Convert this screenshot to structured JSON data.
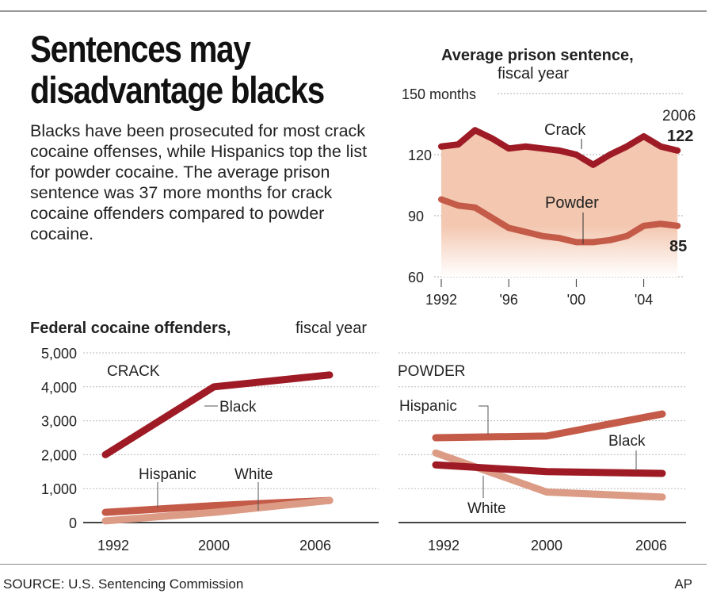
{
  "headline": "Sentences may disadvantage blacks",
  "description": "Blacks have been prosecuted for most crack cocaine offenses, while Hispanics top the list for powder cocaine. The average prison sentence was 37 more months for crack cocaine offenders compared to powder cocaine.",
  "source": "SOURCE: U.S. Sentencing Commission",
  "credit": "AP",
  "colors": {
    "crack_black": "#9e1b25",
    "powder_hispanic": "#c45a48",
    "white": "#dc9b85",
    "area_fill": "#f3c7b0"
  },
  "chart_data": [
    {
      "type": "area",
      "title": "Average prison sentence,",
      "subtitle": "fiscal year",
      "ylim": [
        60,
        150
      ],
      "yticks": [
        60,
        90,
        120,
        150
      ],
      "ytick_labels": [
        "60",
        "90",
        "120",
        "150 months"
      ],
      "xticks": [
        1992,
        1996,
        2000,
        2004
      ],
      "xtick_labels": [
        "1992",
        "'96",
        "'00",
        "'04"
      ],
      "grid": true,
      "x": [
        1992,
        1993,
        1994,
        1995,
        1996,
        1997,
        1998,
        1999,
        2000,
        2001,
        2002,
        2003,
        2004,
        2005,
        2006
      ],
      "series": [
        {
          "name": "Crack",
          "values": [
            124,
            125,
            132,
            128,
            123,
            124,
            123,
            122,
            120,
            115,
            120,
            124,
            129,
            124,
            122
          ],
          "end_label": "122"
        },
        {
          "name": "Powder",
          "values": [
            98,
            95,
            94,
            89,
            84,
            82,
            80,
            79,
            77,
            77,
            78,
            80,
            85,
            86,
            85
          ],
          "end_label": "85"
        }
      ],
      "end_year_label": "2006"
    },
    {
      "type": "line",
      "title": "Federal cocaine offenders,",
      "subtitle": "fiscal year",
      "panel_label": "CRACK",
      "ylim": [
        0,
        5000
      ],
      "ytick_labels": [
        "0",
        "1,000",
        "2,000",
        "3,000",
        "4,000",
        "5,000"
      ],
      "yticks": [
        0,
        1000,
        2000,
        3000,
        4000,
        5000
      ],
      "categories": [
        "1992",
        "2000",
        "2006"
      ],
      "grid": true,
      "series": [
        {
          "name": "Black",
          "values": [
            2000,
            4000,
            4350
          ]
        },
        {
          "name": "Hispanic",
          "values": [
            300,
            500,
            650
          ]
        },
        {
          "name": "White",
          "values": [
            50,
            300,
            650
          ]
        }
      ]
    },
    {
      "type": "line",
      "panel_label": "POWDER",
      "ylim": [
        0,
        5000
      ],
      "yticks": [
        0,
        1000,
        2000,
        3000,
        4000,
        5000
      ],
      "categories": [
        "1992",
        "2000",
        "2006"
      ],
      "grid": true,
      "series": [
        {
          "name": "Hispanic",
          "values": [
            2500,
            2550,
            3200
          ]
        },
        {
          "name": "Black",
          "values": [
            1700,
            1500,
            1450
          ]
        },
        {
          "name": "White",
          "values": [
            2050,
            900,
            750
          ]
        }
      ]
    }
  ]
}
